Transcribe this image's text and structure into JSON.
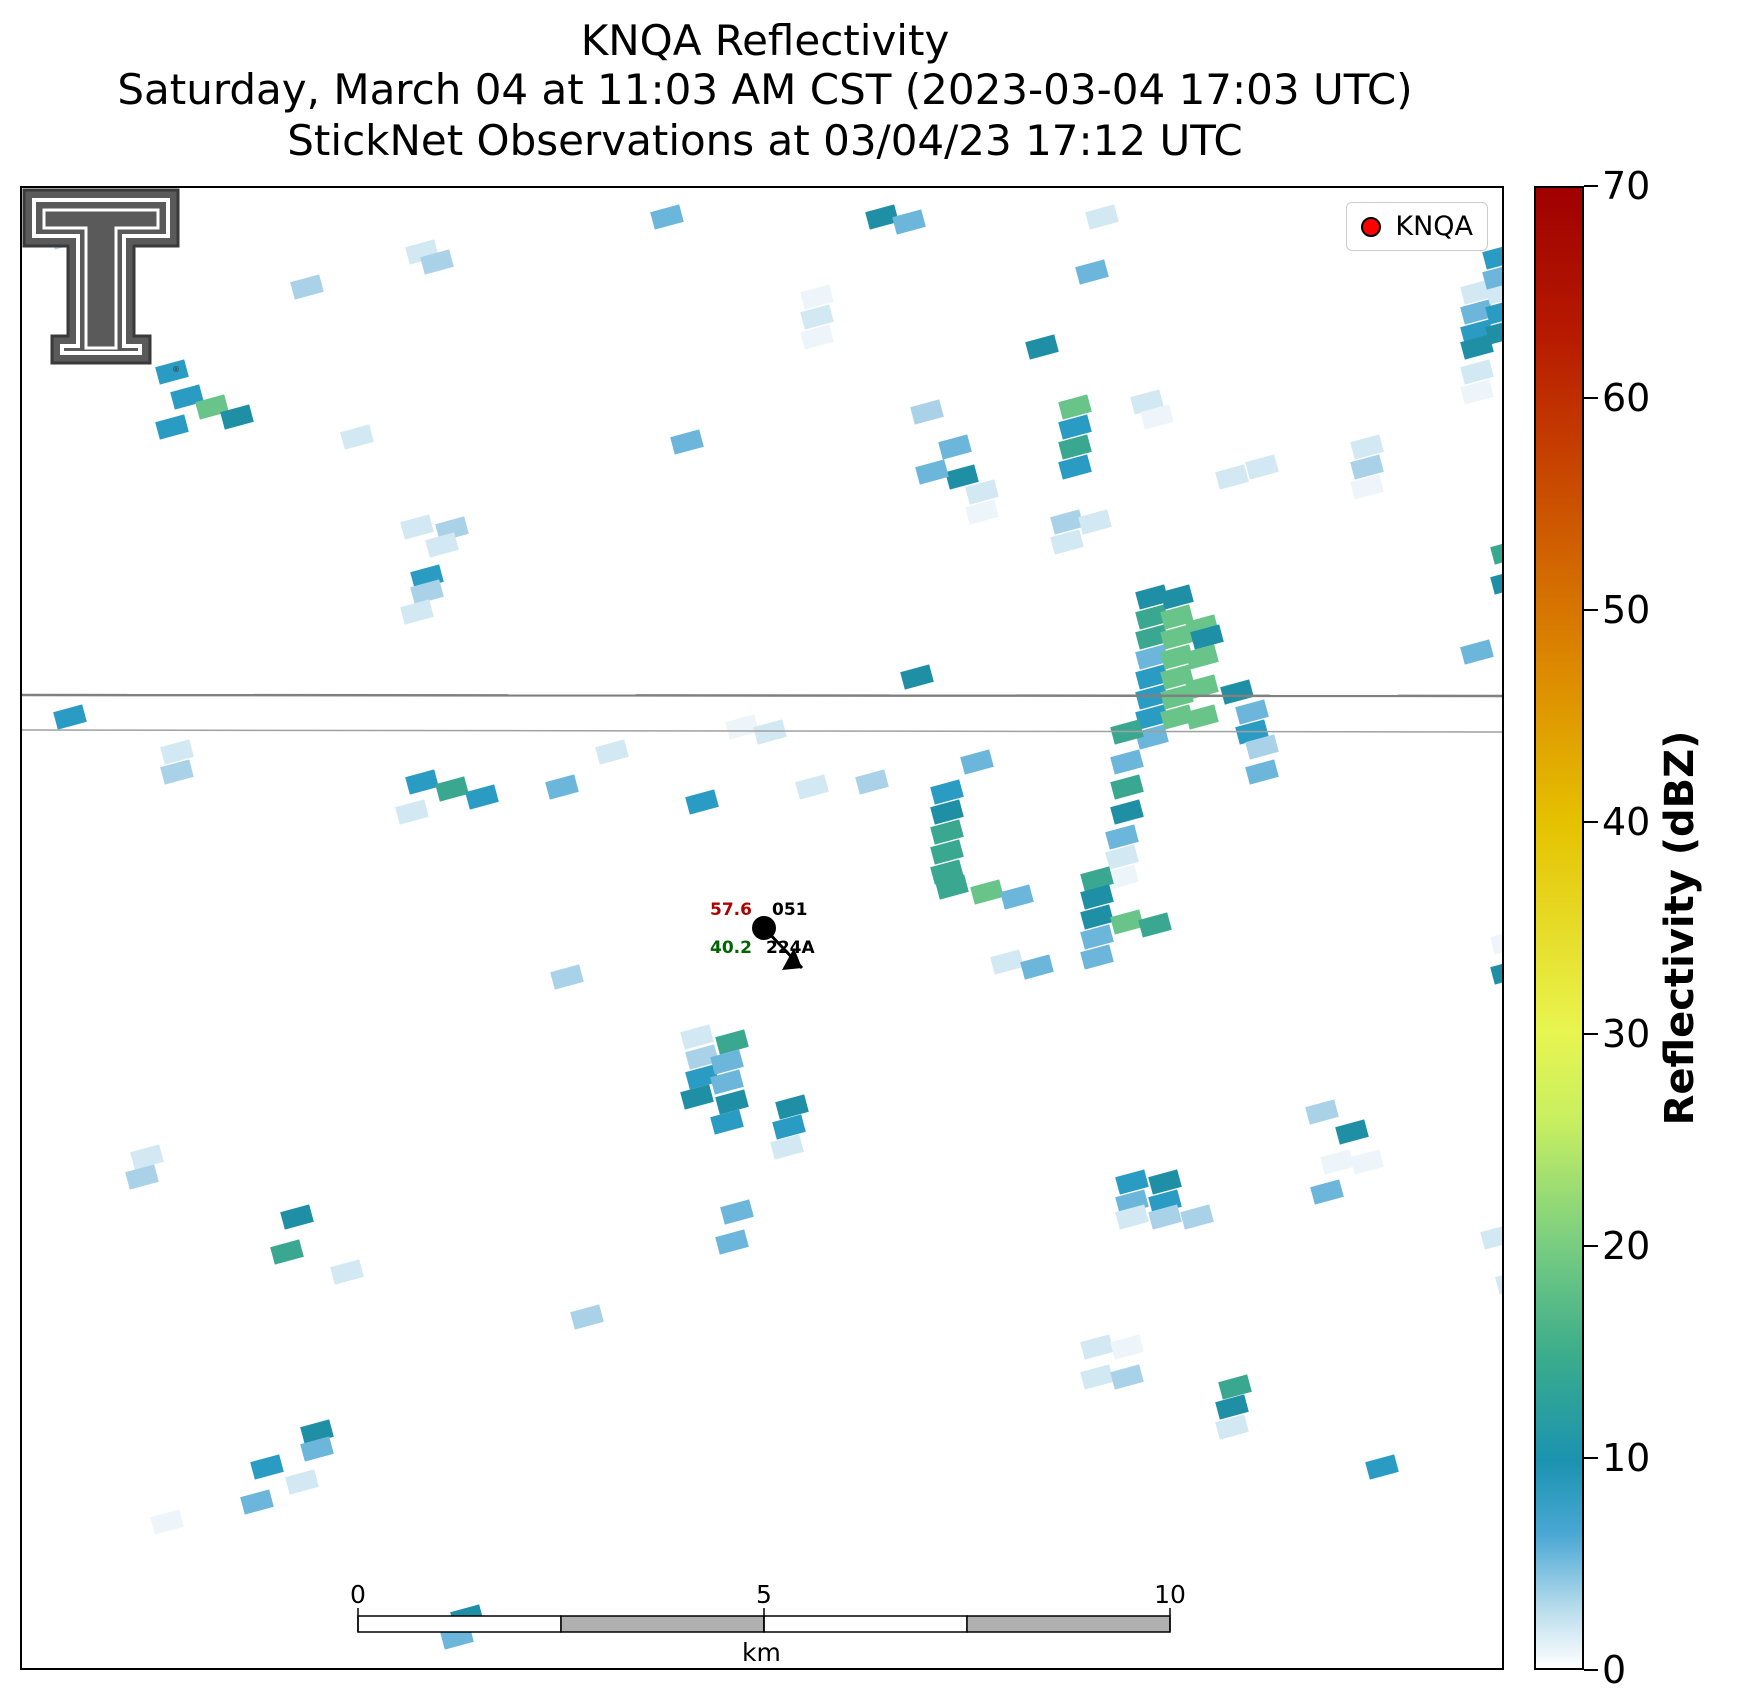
{
  "title": {
    "line1": "KNQA Reflectivity",
    "line2": "Saturday, March 04 at 11:03 AM CST (2023-03-04 17:03 UTC)",
    "line3": "StickNet Observations at 03/04/23 17:12 UTC"
  },
  "legend": {
    "label": "KNQA",
    "marker_color": "#ff0000"
  },
  "colorbar": {
    "label": "Reflectivity (dBZ)",
    "min": 0,
    "max": 70,
    "ticks": [
      "0",
      "10",
      "20",
      "30",
      "40",
      "50",
      "60",
      "70"
    ]
  },
  "station": {
    "temperature": "57.6",
    "temperature_color": "#b00000",
    "dewpoint": "40.2",
    "dewpoint_color": "#006400",
    "pressure": "051",
    "id": "224A"
  },
  "scalebar": {
    "unit": "km",
    "ticks": [
      "0",
      "5",
      "10"
    ]
  },
  "logo": {
    "name": "texas-tech-double-t-logo"
  }
}
